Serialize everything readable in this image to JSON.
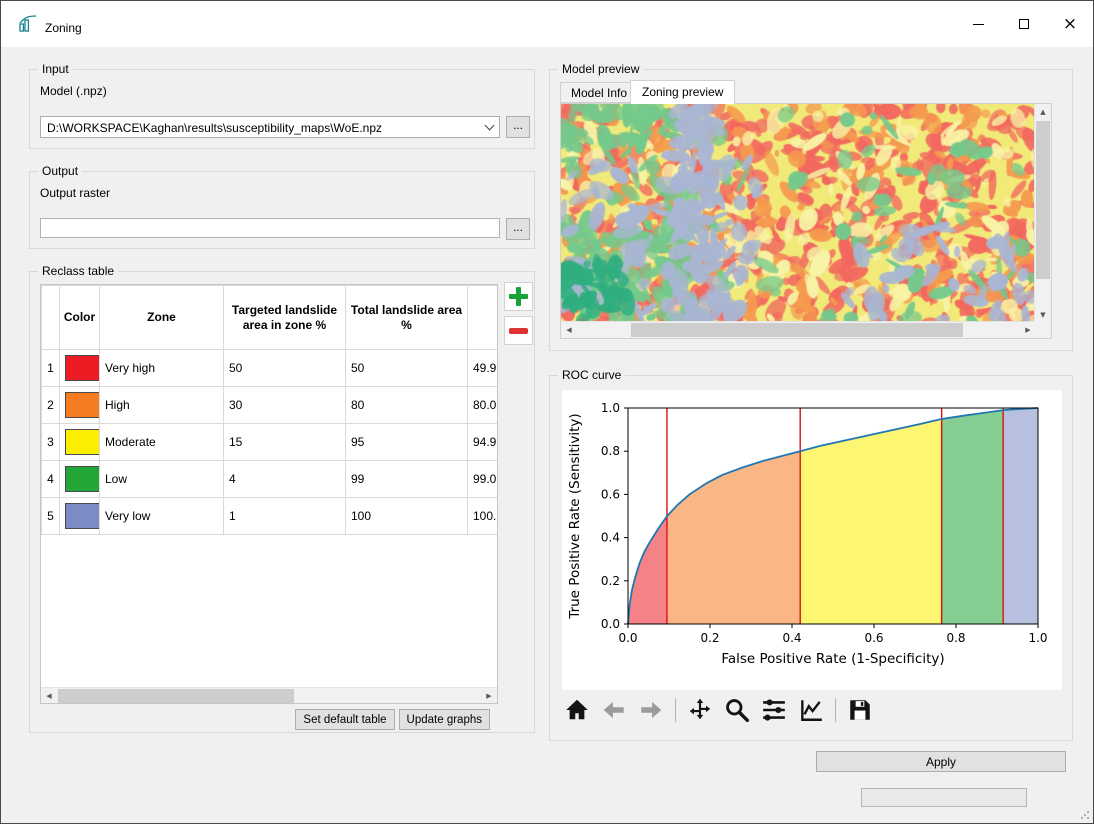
{
  "window": {
    "title": "Zoning",
    "close_glyph": "×"
  },
  "glyphs": {
    "up": "▲",
    "down": "▼",
    "left": "◀",
    "right": "▶"
  },
  "input_group": {
    "title": "Input",
    "model_label": "Model (.npz)",
    "model_value": "D:\\WORKSPACE\\Kaghan\\results\\susceptibility_maps\\WoE.npz",
    "browse_label": "..."
  },
  "output_group": {
    "title": "Output",
    "raster_label": "Output raster",
    "raster_value": "",
    "browse_label": "..."
  },
  "reclass": {
    "title": "Reclass table",
    "columns": [
      "",
      "Color",
      "Zone",
      "Targeted landslide area in zone %",
      "Total landslide area %",
      "S"
    ],
    "rows": [
      {
        "n": "1",
        "color": "#ed1c24",
        "zone": "Very high",
        "targeted": "50",
        "total": "50",
        "s": "49.9"
      },
      {
        "n": "2",
        "color": "#f57c20",
        "zone": "High",
        "targeted": "30",
        "total": "80",
        "s": "80.0"
      },
      {
        "n": "3",
        "color": "#fbee00",
        "zone": "Moderate",
        "targeted": "15",
        "total": "95",
        "s": "94.9"
      },
      {
        "n": "4",
        "color": "#23a638",
        "zone": "Low",
        "targeted": "4",
        "total": "99",
        "s": "99.0"
      },
      {
        "n": "5",
        "color": "#7b8cc4",
        "zone": "Very low",
        "targeted": "1",
        "total": "100",
        "s": "100."
      }
    ],
    "set_default_label": "Set default table",
    "update_graphs_label": "Update graphs"
  },
  "preview": {
    "title": "Model preview",
    "tabs": [
      "Model Info",
      "Zoning preview"
    ],
    "active_tab": 1,
    "map_base": "#f1ea78",
    "map_palette": [
      {
        "color": "#f2685f",
        "count": 520,
        "bias": "any"
      },
      {
        "color": "#f59a4e",
        "count": 190,
        "bias": "any"
      },
      {
        "color": "#f8f3a6",
        "count": 140,
        "bias": "any"
      },
      {
        "color": "#74c98c",
        "count": 250,
        "bias": "green"
      },
      {
        "color": "#a9b6d3",
        "count": 230,
        "bias": "band"
      },
      {
        "color": "#2fae7f",
        "count": 45,
        "bias": "bl"
      }
    ]
  },
  "roc_group": {
    "title": "ROC curve"
  },
  "chart_data": {
    "type": "line",
    "title": "",
    "xlabel": "False Positive Rate (1-Specificity)",
    "ylabel": "True Positive Rate (Sensitivity)",
    "xlim": [
      0,
      1
    ],
    "ylim": [
      0,
      1
    ],
    "xticks": [
      0.0,
      0.2,
      0.4,
      0.6,
      0.8,
      1.0
    ],
    "yticks": [
      0.0,
      0.2,
      0.4,
      0.6,
      0.8,
      1.0
    ],
    "grid": false,
    "curve": {
      "name": "ROC",
      "color": "#1f77b4",
      "x": [
        0,
        0.004,
        0.01,
        0.018,
        0.028,
        0.04,
        0.055,
        0.075,
        0.095,
        0.12,
        0.15,
        0.19,
        0.23,
        0.28,
        0.33,
        0.38,
        0.42,
        0.47,
        0.53,
        0.59,
        0.65,
        0.71,
        0.765,
        0.82,
        0.87,
        0.915,
        0.95,
        0.98,
        1.0
      ],
      "y": [
        0,
        0.09,
        0.16,
        0.22,
        0.28,
        0.335,
        0.385,
        0.445,
        0.499,
        0.55,
        0.6,
        0.65,
        0.69,
        0.725,
        0.755,
        0.78,
        0.8,
        0.825,
        0.85,
        0.875,
        0.9,
        0.925,
        0.949,
        0.965,
        0.978,
        0.99,
        0.995,
        0.998,
        1.0
      ]
    },
    "zones": [
      {
        "label": "Very high",
        "color": "#ed1c24",
        "x_start": 0,
        "x_end": 0.095
      },
      {
        "label": "High",
        "color": "#f57c20",
        "x_start": 0.095,
        "x_end": 0.42
      },
      {
        "label": "Moderate",
        "color": "#fbee00",
        "x_start": 0.42,
        "x_end": 0.765
      },
      {
        "label": "Low",
        "color": "#23a638",
        "x_start": 0.765,
        "x_end": 0.915
      },
      {
        "label": "Very low",
        "color": "#7b8cc4",
        "x_start": 0.915,
        "x_end": 1.0
      }
    ],
    "boundary_line_color": "#dd1111",
    "fill_opacity": 0.55
  },
  "apply_label": "Apply"
}
